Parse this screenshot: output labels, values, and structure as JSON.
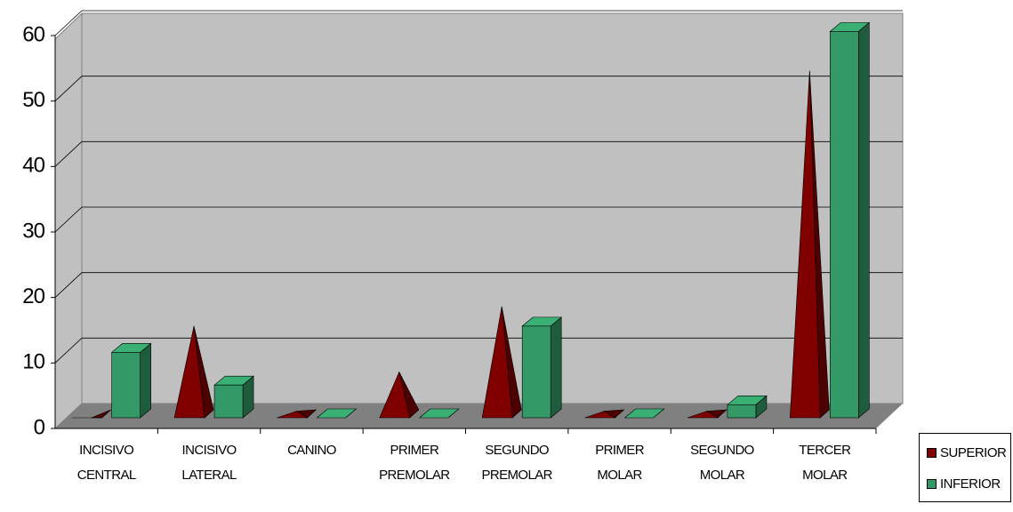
{
  "chart_data": {
    "type": "bar3d",
    "categories": [
      "INCISIVO CENTRAL",
      "INCISIVO LATERAL",
      "CANINO",
      "PRIMER PREMOLAR",
      "SEGUNDO PREMOLAR",
      "PRIMER MOLAR",
      "SEGUNDO MOLAR",
      "TERCER MOLAR"
    ],
    "series": [
      {
        "name": "SUPERIOR",
        "color": "#800000",
        "shape": "pyramid",
        "values": [
          0,
          14,
          1,
          7,
          17,
          1,
          1,
          53
        ]
      },
      {
        "name": "INFERIOR",
        "color": "#339966",
        "shape": "box",
        "values": [
          10,
          5,
          0,
          0,
          14,
          0,
          2,
          59
        ]
      }
    ],
    "ylim": [
      0,
      60
    ],
    "yticks": [
      0,
      10,
      20,
      30,
      40,
      50,
      60
    ],
    "grid": true,
    "legend": "right"
  }
}
